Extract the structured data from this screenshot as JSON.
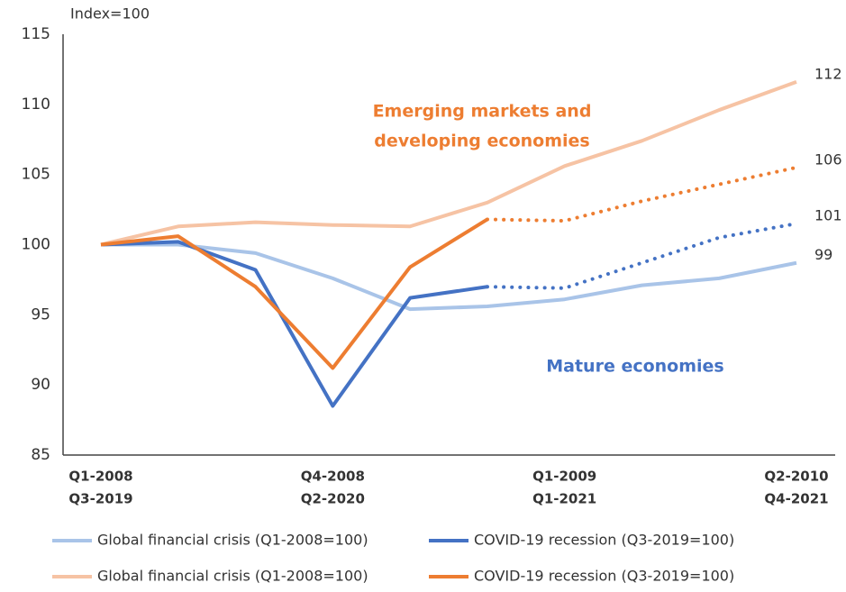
{
  "chart_data": {
    "type": "line",
    "y_label": "Index=100",
    "categories": [
      [
        "Q1-2008",
        "Q3-2019"
      ],
      null,
      null,
      [
        "Q4-2008",
        "Q2-2020"
      ],
      null,
      null,
      [
        "Q1-2009",
        "Q1-2021"
      ],
      null,
      null,
      [
        "Q2-2010",
        "Q4-2021"
      ]
    ],
    "ylim": [
      85,
      115
    ],
    "yticks": [
      85,
      90,
      95,
      100,
      105,
      110,
      115
    ],
    "series": [
      {
        "name": "Global financial crisis (Q1-2008=100)",
        "color": "#a9c4e8",
        "values": [
          100,
          100,
          99.4,
          97.6,
          95.4,
          95.6,
          96.1,
          97.1,
          97.6,
          98.7
        ],
        "value_labels": [
          null,
          null,
          null,
          null,
          null,
          null,
          null,
          null,
          null,
          "99"
        ]
      },
      {
        "name": "COVID-19 recession (Q3-2019=100)",
        "color": "#4472c4",
        "values": [
          100,
          100.2,
          98.2,
          88.5,
          96.2,
          97.0,
          null,
          null,
          null,
          null
        ],
        "projection": [
          null,
          null,
          null,
          null,
          null,
          97.0,
          96.9,
          98.7,
          100.5,
          101.5
        ],
        "projection_labels": [
          null,
          null,
          null,
          null,
          null,
          null,
          null,
          null,
          null,
          "101"
        ]
      },
      {
        "name": "Global financial crisis (Q1-2008=100)",
        "color": "#f6c3a4",
        "values": [
          100,
          101.3,
          101.6,
          101.4,
          101.3,
          103.0,
          105.6,
          107.4,
          109.6,
          111.6
        ],
        "value_labels": [
          null,
          null,
          null,
          null,
          null,
          null,
          null,
          null,
          null,
          "112"
        ]
      },
      {
        "name": "COVID-19 recession (Q3-2019=100)",
        "color": "#ed7d31",
        "values": [
          100,
          100.6,
          97.0,
          91.2,
          98.4,
          101.8,
          null,
          null,
          null,
          null
        ],
        "projection": [
          null,
          null,
          null,
          null,
          null,
          101.8,
          101.7,
          103.1,
          104.3,
          105.5
        ],
        "projection_labels": [
          null,
          null,
          null,
          null,
          null,
          null,
          null,
          null,
          null,
          "106"
        ]
      }
    ],
    "annotations": [
      {
        "lines": [
          "Emerging markets and",
          "developing economies"
        ],
        "color": "#ed7d31"
      },
      {
        "lines": [
          "Mature economies"
        ],
        "color": "#4472c4"
      }
    ]
  }
}
